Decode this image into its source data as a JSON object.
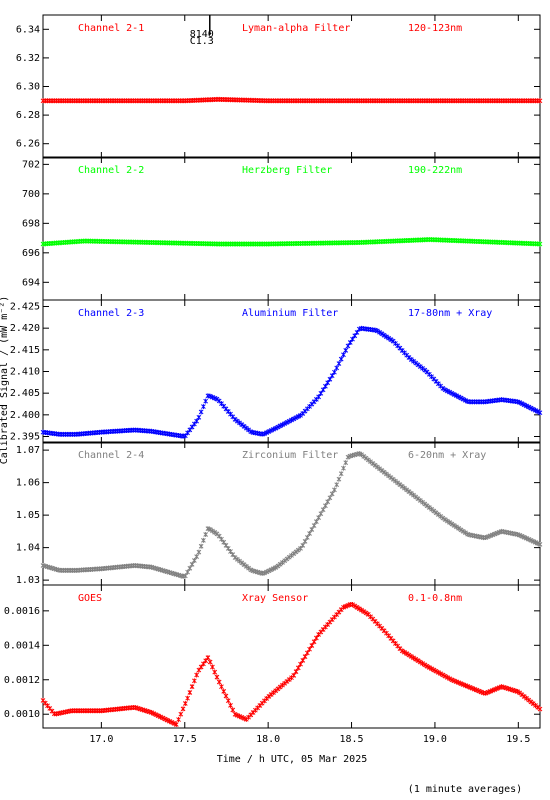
{
  "xlabel": "Time / h UTC, 05 Mar 2025",
  "ylabel": "Calibrated Signal / (mW m⁻²)",
  "footer": "(1 minute averages)",
  "marker": {
    "top": "8140",
    "bottom": "C1.3",
    "x": 17.65
  },
  "chart_data": [
    {
      "type": "scatter",
      "channel": "Channel 2-1",
      "filter": "Lyman-alpha Filter",
      "band": "120-123nm",
      "color": "#ff0000",
      "xlim": [
        16.65,
        19.63
      ],
      "ylim": [
        6.25,
        6.35
      ],
      "yticks": [
        6.26,
        6.28,
        6.3,
        6.32,
        6.34
      ],
      "ydec": 2,
      "grid": false,
      "x": [
        16.65,
        17.0,
        17.5,
        17.7,
        18.0,
        18.5,
        19.0,
        19.63
      ],
      "y": [
        6.29,
        6.29,
        6.29,
        6.291,
        6.29,
        6.29,
        6.29,
        6.29
      ]
    },
    {
      "type": "scatter",
      "channel": "Channel 2-2",
      "filter": "Herzberg Filter",
      "band": "190-222nm",
      "color": "#00ff00",
      "xlim": [
        16.65,
        19.63
      ],
      "ylim": [
        692.8,
        702.5
      ],
      "yticks": [
        694,
        696,
        698,
        700,
        702
      ],
      "ydec": 0,
      "grid": false,
      "x": [
        16.65,
        16.9,
        17.3,
        17.7,
        18.0,
        18.55,
        18.97,
        19.63
      ],
      "y": [
        696.6,
        696.8,
        696.7,
        696.6,
        696.6,
        696.7,
        696.9,
        696.6
      ]
    },
    {
      "type": "scatter",
      "channel": "Channel 2-3",
      "filter": "Aluminium Filter",
      "band": "17-80nm + Xray",
      "color": "#0000ff",
      "xlim": [
        16.65,
        19.63
      ],
      "ylim": [
        2.3935,
        2.4265
      ],
      "yticks": [
        2.395,
        2.4,
        2.405,
        2.41,
        2.415,
        2.42,
        2.425
      ],
      "ydec": 3,
      "grid": false,
      "x": [
        16.65,
        16.75,
        16.85,
        17.0,
        17.2,
        17.3,
        17.5,
        17.58,
        17.64,
        17.7,
        17.8,
        17.9,
        17.97,
        18.05,
        18.2,
        18.3,
        18.4,
        18.48,
        18.55,
        18.65,
        18.75,
        18.85,
        18.95,
        19.05,
        19.2,
        19.3,
        19.4,
        19.5,
        19.63
      ],
      "y": [
        2.396,
        2.3955,
        2.3955,
        2.396,
        2.3965,
        2.3962,
        2.395,
        2.399,
        2.4045,
        2.4035,
        2.399,
        2.396,
        2.3955,
        2.397,
        2.4,
        2.404,
        2.41,
        2.416,
        2.42,
        2.4195,
        2.417,
        2.413,
        2.41,
        2.406,
        2.403,
        2.403,
        2.4035,
        2.403,
        2.4005
      ]
    },
    {
      "type": "scatter",
      "channel": "Channel 2-4",
      "filter": "Zirconium Filter",
      "band": "6-20nm + Xray",
      "color": "#808080",
      "xlim": [
        16.65,
        19.63
      ],
      "ylim": [
        1.0285,
        1.0725
      ],
      "yticks": [
        1.03,
        1.04,
        1.05,
        1.06,
        1.07
      ],
      "ydec": 2,
      "grid": false,
      "x": [
        16.65,
        16.75,
        16.85,
        17.0,
        17.2,
        17.3,
        17.5,
        17.58,
        17.64,
        17.7,
        17.8,
        17.9,
        17.97,
        18.05,
        18.2,
        18.3,
        18.4,
        18.48,
        18.55,
        18.65,
        18.75,
        18.85,
        18.95,
        19.05,
        19.2,
        19.3,
        19.4,
        19.5,
        19.63
      ],
      "y": [
        1.0345,
        1.033,
        1.033,
        1.0335,
        1.0345,
        1.034,
        1.031,
        1.038,
        1.046,
        1.044,
        1.037,
        1.033,
        1.032,
        1.034,
        1.04,
        1.049,
        1.058,
        1.068,
        1.069,
        1.065,
        1.061,
        1.057,
        1.053,
        1.049,
        1.044,
        1.043,
        1.045,
        1.044,
        1.041
      ]
    },
    {
      "type": "scatter",
      "channel": "GOES",
      "filter": "Xray Sensor",
      "band": "0.1-0.8nm",
      "color": "#ff0000",
      "xlim": [
        16.65,
        19.63
      ],
      "ylim": [
        0.00092,
        0.00175
      ],
      "yticks": [
        0.001,
        0.0012,
        0.0014,
        0.0016
      ],
      "ydec": 4,
      "grid": false,
      "xticks": [
        17.0,
        17.5,
        18.0,
        18.5,
        19.0,
        19.5
      ],
      "xdec": 1,
      "x": [
        16.65,
        16.72,
        16.82,
        17.0,
        17.2,
        17.3,
        17.45,
        17.52,
        17.58,
        17.64,
        17.7,
        17.8,
        17.87,
        18.0,
        18.15,
        18.3,
        18.45,
        18.5,
        18.6,
        18.7,
        18.8,
        18.95,
        19.1,
        19.3,
        19.4,
        19.5,
        19.63
      ],
      "y": [
        0.00108,
        0.001,
        0.00102,
        0.00102,
        0.00104,
        0.00101,
        0.00094,
        0.0011,
        0.00125,
        0.00133,
        0.0012,
        0.001,
        0.00097,
        0.0011,
        0.00122,
        0.00146,
        0.00162,
        0.00164,
        0.00158,
        0.00148,
        0.00137,
        0.00128,
        0.0012,
        0.00112,
        0.00116,
        0.00113,
        0.00103
      ]
    }
  ]
}
